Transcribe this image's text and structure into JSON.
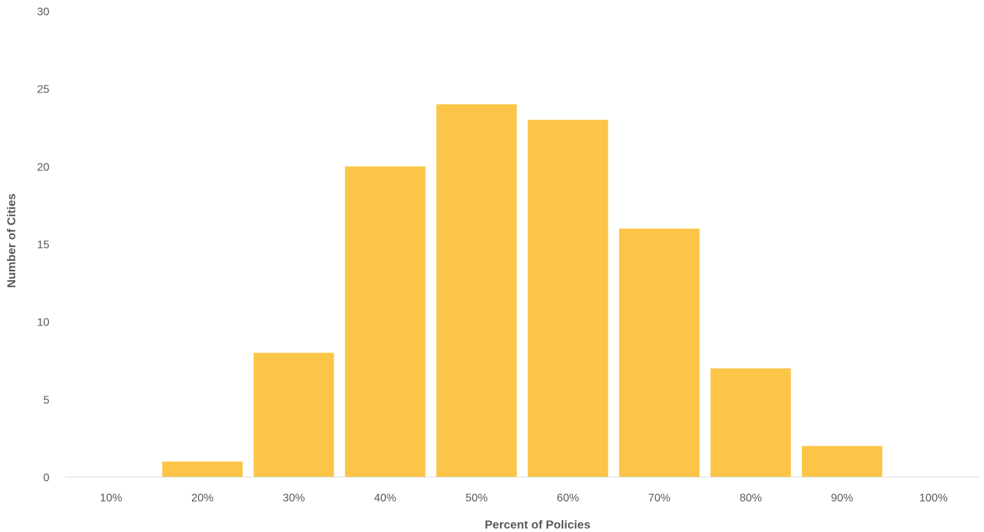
{
  "chart_data": {
    "type": "bar",
    "title": "",
    "xlabel": "Percent of Policies",
    "ylabel": "Number of Cities",
    "categories": [
      "10%",
      "20%",
      "30%",
      "40%",
      "50%",
      "60%",
      "70%",
      "80%",
      "90%",
      "100%"
    ],
    "values": [
      0,
      1,
      8,
      20,
      24,
      23,
      16,
      7,
      2,
      0
    ],
    "ylim": [
      0,
      30
    ],
    "yticks": [
      0,
      5,
      10,
      15,
      20,
      25,
      30
    ],
    "grid": false,
    "legend": "none",
    "bar_color": "#fcc547",
    "axis_color": "#d9d9d9",
    "text_color": "#595959"
  }
}
